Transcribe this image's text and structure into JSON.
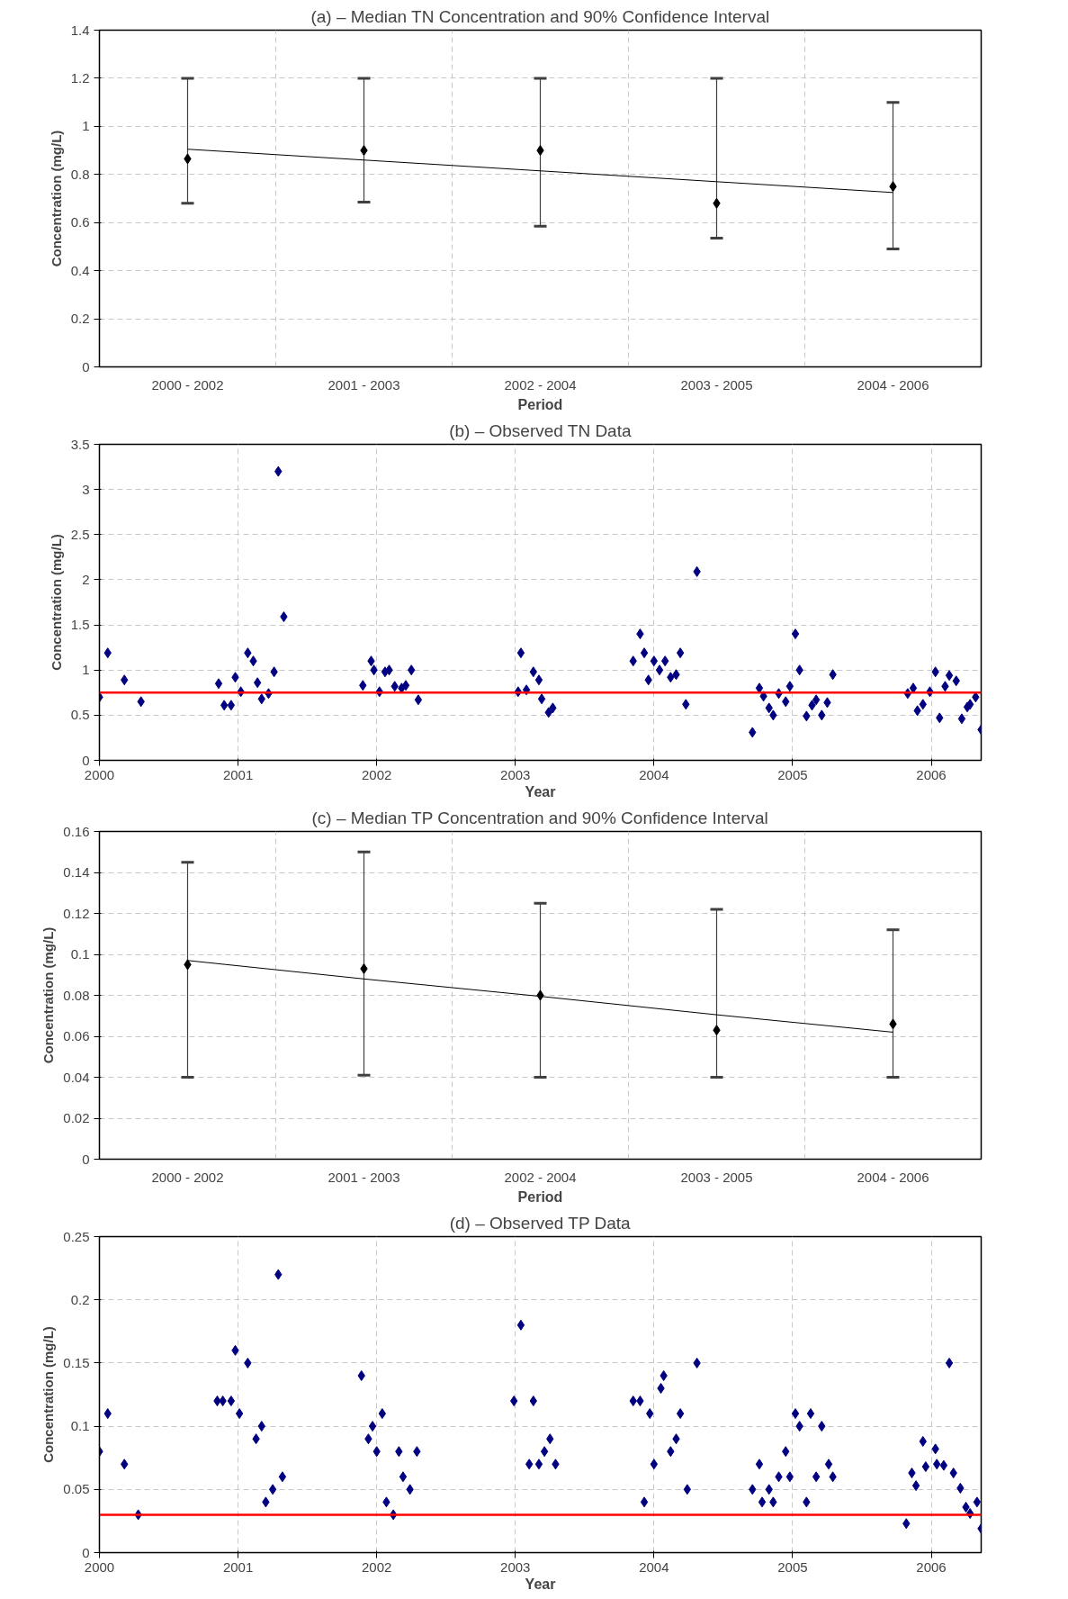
{
  "chart_data": [
    {
      "type": "scatter",
      "title": "(a) – Median TN Concentration and 90% Confidence Interval",
      "xlabel": "Period",
      "ylabel": "Concentration (mg/L)",
      "categories": [
        "2000 - 2002",
        "2001 - 2003",
        "2002 - 2004",
        "2003 - 2005",
        "2004 - 2006"
      ],
      "ylim": [
        0,
        1.4
      ],
      "yticks": [
        0,
        0.2,
        0.4,
        0.6,
        0.8,
        1,
        1.2,
        1.4
      ],
      "grid": true,
      "series": [
        {
          "type": "scatter",
          "marker": "diamond",
          "color": "#000000",
          "values": [
            0.865,
            0.9,
            0.9,
            0.68,
            0.75
          ],
          "errors": [
            [
              0.68,
              1.2
            ],
            [
              0.685,
              1.2
            ],
            [
              0.585,
              1.2
            ],
            [
              0.535,
              1.2
            ],
            [
              0.49,
              1.1
            ]
          ]
        },
        {
          "type": "line",
          "marker": "none",
          "color": "#000000",
          "values": [
            0.905,
            0.86,
            0.815,
            0.77,
            0.725
          ]
        }
      ]
    },
    {
      "type": "scatter",
      "title": "(b) – Observed TN Data",
      "xlabel": "Year",
      "ylabel": "Concentration (mg/L)",
      "xlim": [
        2000,
        2006.36
      ],
      "xticks": [
        2000,
        2001,
        2002,
        2003,
        2004,
        2005,
        2006
      ],
      "ylim": [
        0,
        3.5
      ],
      "yticks": [
        0,
        0.5,
        1,
        1.5,
        2,
        2.5,
        3,
        3.5
      ],
      "grid": true,
      "marker": "diamond",
      "color": "#000080",
      "x": [
        2000.0,
        2000.06,
        2000.18,
        2000.3,
        2000.86,
        2000.9,
        2000.95,
        2000.98,
        2001.02,
        2001.07,
        2001.11,
        2001.14,
        2001.17,
        2001.22,
        2001.26,
        2001.29,
        2001.33,
        2001.9,
        2001.96,
        2001.98,
        2002.02,
        2002.06,
        2002.09,
        2002.13,
        2002.18,
        2002.21,
        2002.25,
        2002.3,
        2003.02,
        2003.04,
        2003.08,
        2003.13,
        2003.17,
        2003.19,
        2003.24,
        2003.27,
        2003.85,
        2003.9,
        2003.93,
        2003.96,
        2004.0,
        2004.04,
        2004.08,
        2004.12,
        2004.16,
        2004.19,
        2004.23,
        2004.31,
        2004.71,
        2004.76,
        2004.79,
        2004.83,
        2004.86,
        2004.9,
        2004.95,
        2004.98,
        2005.02,
        2005.05,
        2005.1,
        2005.14,
        2005.17,
        2005.21,
        2005.25,
        2005.29,
        2005.83,
        2005.87,
        2005.9,
        2005.94,
        2005.99,
        2006.03,
        2006.06,
        2006.1,
        2006.13,
        2006.18,
        2006.22,
        2006.26,
        2006.28,
        2006.32,
        2006.36
      ],
      "values": [
        0.7,
        1.19,
        0.89,
        0.65,
        0.85,
        0.61,
        0.61,
        0.92,
        0.76,
        1.19,
        1.1,
        0.86,
        0.68,
        0.74,
        0.98,
        3.2,
        1.59,
        0.83,
        1.1,
        1.0,
        0.76,
        0.98,
        1.0,
        0.82,
        0.8,
        0.83,
        1.0,
        0.67,
        0.76,
        1.19,
        0.78,
        0.98,
        0.89,
        0.68,
        0.53,
        0.58,
        1.1,
        1.4,
        1.19,
        0.89,
        1.1,
        1.0,
        1.1,
        0.92,
        0.95,
        1.19,
        0.62,
        2.09,
        0.31,
        0.8,
        0.71,
        0.58,
        0.5,
        0.74,
        0.65,
        0.82,
        1.4,
        1.0,
        0.49,
        0.61,
        0.67,
        0.5,
        0.64,
        0.95,
        0.74,
        0.8,
        0.55,
        0.62,
        0.76,
        0.98,
        0.47,
        0.82,
        0.94,
        0.88,
        0.46,
        0.59,
        0.62,
        0.7,
        0.34
      ],
      "ref_lines": [
        {
          "axis": "y",
          "value": 0.75,
          "color": "#ff0000"
        }
      ]
    },
    {
      "type": "scatter",
      "title": "(c) – Median TP Concentration and 90% Confidence Interval",
      "xlabel": "Period",
      "ylabel": "Concentration (mg/L)",
      "categories": [
        "2000 - 2002",
        "2001 - 2003",
        "2002 - 2004",
        "2003 - 2005",
        "2004 - 2006"
      ],
      "ylim": [
        0,
        0.16
      ],
      "yticks": [
        0,
        0.02,
        0.04,
        0.06,
        0.08,
        0.1,
        0.12,
        0.14,
        0.16
      ],
      "grid": true,
      "series": [
        {
          "type": "scatter",
          "marker": "diamond",
          "color": "#000000",
          "values": [
            0.095,
            0.093,
            0.08,
            0.063,
            0.066
          ],
          "errors": [
            [
              0.04,
              0.145
            ],
            [
              0.041,
              0.15
            ],
            [
              0.04,
              0.125
            ],
            [
              0.04,
              0.122
            ],
            [
              0.04,
              0.112
            ]
          ]
        },
        {
          "type": "line",
          "marker": "none",
          "color": "#000000",
          "values": [
            0.097,
            0.088,
            0.0795,
            0.0705,
            0.062
          ]
        }
      ]
    },
    {
      "type": "scatter",
      "title": "(d) – Observed TP Data",
      "xlabel": "Year",
      "ylabel": "Concentration (mg/L)",
      "xlim": [
        2000,
        2006.36
      ],
      "xticks": [
        2000,
        2001,
        2002,
        2003,
        2004,
        2005,
        2006
      ],
      "ylim": [
        0,
        0.25
      ],
      "yticks": [
        0,
        0.05,
        0.1,
        0.15,
        0.2,
        0.25
      ],
      "grid": true,
      "marker": "diamond",
      "color": "#000080",
      "x": [
        2000.0,
        2000.06,
        2000.18,
        2000.28,
        2000.85,
        2000.89,
        2000.95,
        2000.98,
        2001.01,
        2001.07,
        2001.13,
        2001.17,
        2001.2,
        2001.25,
        2001.29,
        2001.32,
        2001.89,
        2001.94,
        2001.97,
        2002.0,
        2002.04,
        2002.07,
        2002.12,
        2002.16,
        2002.19,
        2002.24,
        2002.29,
        2002.99,
        2003.04,
        2003.1,
        2003.13,
        2003.17,
        2003.21,
        2003.25,
        2003.29,
        2003.85,
        2003.9,
        2003.93,
        2003.97,
        2004.0,
        2004.05,
        2004.07,
        2004.12,
        2004.16,
        2004.19,
        2004.24,
        2004.31,
        2004.71,
        2004.76,
        2004.78,
        2004.83,
        2004.86,
        2004.9,
        2004.95,
        2004.98,
        2005.02,
        2005.05,
        2005.1,
        2005.13,
        2005.17,
        2005.21,
        2005.26,
        2005.29,
        2005.82,
        2005.86,
        2005.89,
        2005.94,
        2005.96,
        2006.03,
        2006.04,
        2006.09,
        2006.13,
        2006.16,
        2006.21,
        2006.25,
        2006.28,
        2006.33,
        2006.36
      ],
      "values": [
        0.08,
        0.11,
        0.07,
        0.03,
        0.12,
        0.12,
        0.12,
        0.16,
        0.11,
        0.15,
        0.09,
        0.1,
        0.04,
        0.05,
        0.22,
        0.06,
        0.14,
        0.09,
        0.1,
        0.08,
        0.11,
        0.04,
        0.03,
        0.08,
        0.06,
        0.05,
        0.08,
        0.12,
        0.18,
        0.07,
        0.12,
        0.07,
        0.08,
        0.09,
        0.07,
        0.12,
        0.12,
        0.04,
        0.11,
        0.07,
        0.13,
        0.14,
        0.08,
        0.09,
        0.11,
        0.05,
        0.15,
        0.05,
        0.07,
        0.04,
        0.05,
        0.04,
        0.06,
        0.08,
        0.06,
        0.11,
        0.1,
        0.04,
        0.11,
        0.06,
        0.1,
        0.07,
        0.06,
        0.023,
        0.063,
        0.053,
        0.088,
        0.068,
        0.082,
        0.07,
        0.069,
        0.15,
        0.063,
        0.051,
        0.036,
        0.031,
        0.04,
        0.019
      ],
      "ref_lines": [
        {
          "axis": "y",
          "value": 0.03,
          "color": "#ff0000"
        }
      ]
    }
  ]
}
